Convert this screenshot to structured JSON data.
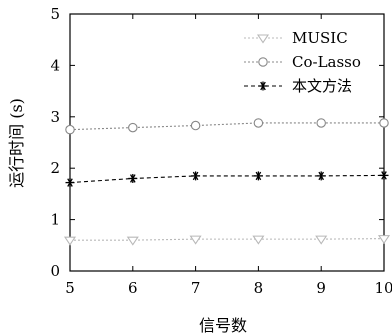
{
  "chart_data": {
    "type": "line",
    "xlabel": "信号数",
    "ylabel": "运行时间 (s)",
    "x": [
      5,
      6,
      7,
      8,
      9,
      10
    ],
    "xlim": [
      5,
      10
    ],
    "ylim": [
      0,
      5
    ],
    "xticks": [
      "5",
      "6",
      "7",
      "8",
      "9",
      "10"
    ],
    "yticks": [
      "0",
      "1",
      "2",
      "3",
      "4",
      "5"
    ],
    "grid": false,
    "legend_position": "top-right",
    "series": [
      {
        "name": "MUSIC",
        "values": [
          0.6,
          0.6,
          0.62,
          0.62,
          0.62,
          0.63
        ],
        "color": "#b8b8b8",
        "marker": "triangle-down",
        "line_style": "dotted"
      },
      {
        "name": "Co-Lasso",
        "values": [
          2.75,
          2.79,
          2.83,
          2.88,
          2.88,
          2.88
        ],
        "color": "#888888",
        "marker": "circle",
        "line_style": "dotted"
      },
      {
        "name": "本文方法",
        "values": [
          1.72,
          1.8,
          1.85,
          1.85,
          1.85,
          1.86
        ],
        "color": "#000000",
        "marker": "star",
        "line_style": "dashed"
      }
    ]
  }
}
